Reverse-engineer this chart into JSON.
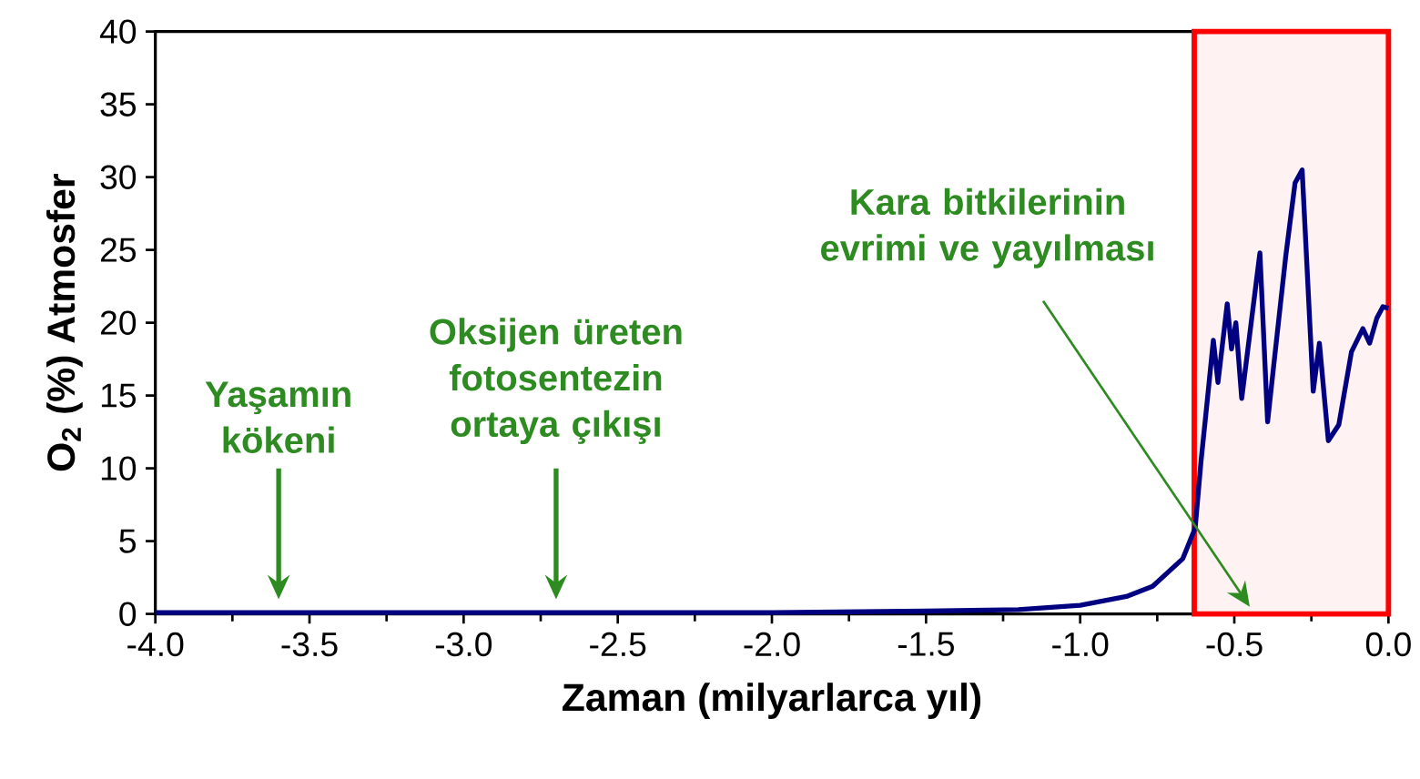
{
  "chart_data": {
    "type": "line",
    "xlabel": "Zaman (milyarlarca yıl)",
    "ylabel": "O$_{2}$ (%) Atmosfer",
    "xlim": [
      -4,
      0
    ],
    "ylim": [
      0,
      40
    ],
    "xticks": [
      {
        "value": -4,
        "label": "-4.0"
      },
      {
        "value": -3.5,
        "label": "-3.5"
      },
      {
        "value": -3,
        "label": "-3.0"
      },
      {
        "value": -2.5,
        "label": "-2.5"
      },
      {
        "value": -2,
        "label": "-2.0"
      },
      {
        "value": -1.5,
        "label": "-1.5"
      },
      {
        "value": -1,
        "label": "-1.0"
      },
      {
        "value": -0.5,
        "label": "-0.5"
      },
      {
        "value": 0,
        "label": "0.0"
      }
    ],
    "yticks": [
      0,
      5,
      10,
      15,
      20,
      25,
      30,
      35,
      40
    ],
    "x": [
      -4,
      -3,
      -2,
      -1.5,
      -1.2,
      -1.0,
      -0.85,
      -0.765,
      -0.667,
      -0.627,
      -0.608,
      -0.588,
      -0.568,
      -0.553,
      -0.523,
      -0.509,
      -0.495,
      -0.476,
      -0.417,
      -0.392,
      -0.372,
      -0.333,
      -0.303,
      -0.28,
      -0.244,
      -0.224,
      -0.195,
      -0.161,
      -0.12,
      -0.083,
      -0.061,
      -0.038,
      -0.018,
      0
    ],
    "series": [
      {
        "color": "#000080",
        "values": [
          0.1,
          0.1,
          0.1,
          0.2,
          0.3,
          0.6,
          1.2,
          1.9,
          3.8,
          5.9,
          10.5,
          14.6,
          18.8,
          15.9,
          21.3,
          18.2,
          20.0,
          14.8,
          24.8,
          13.2,
          17.1,
          24.6,
          29.6,
          30.5,
          15.3,
          18.6,
          11.9,
          13.0,
          18.0,
          19.6,
          18.6,
          20.3,
          21.1,
          21.0
        ]
      }
    ],
    "bands": [
      {
        "axis": "x",
        "from": -0.63,
        "to": 0,
        "color": "#ff0000"
      }
    ],
    "annotations": [
      "Yaşamın kökeni",
      "Oksijen üreten fotosentezin ortaya çıkışı",
      {
        "text": "Kara bitkilerinin evrimi ve yayılması",
        "x": -0.45,
        "y": 0.5
      }
    ]
  }
}
